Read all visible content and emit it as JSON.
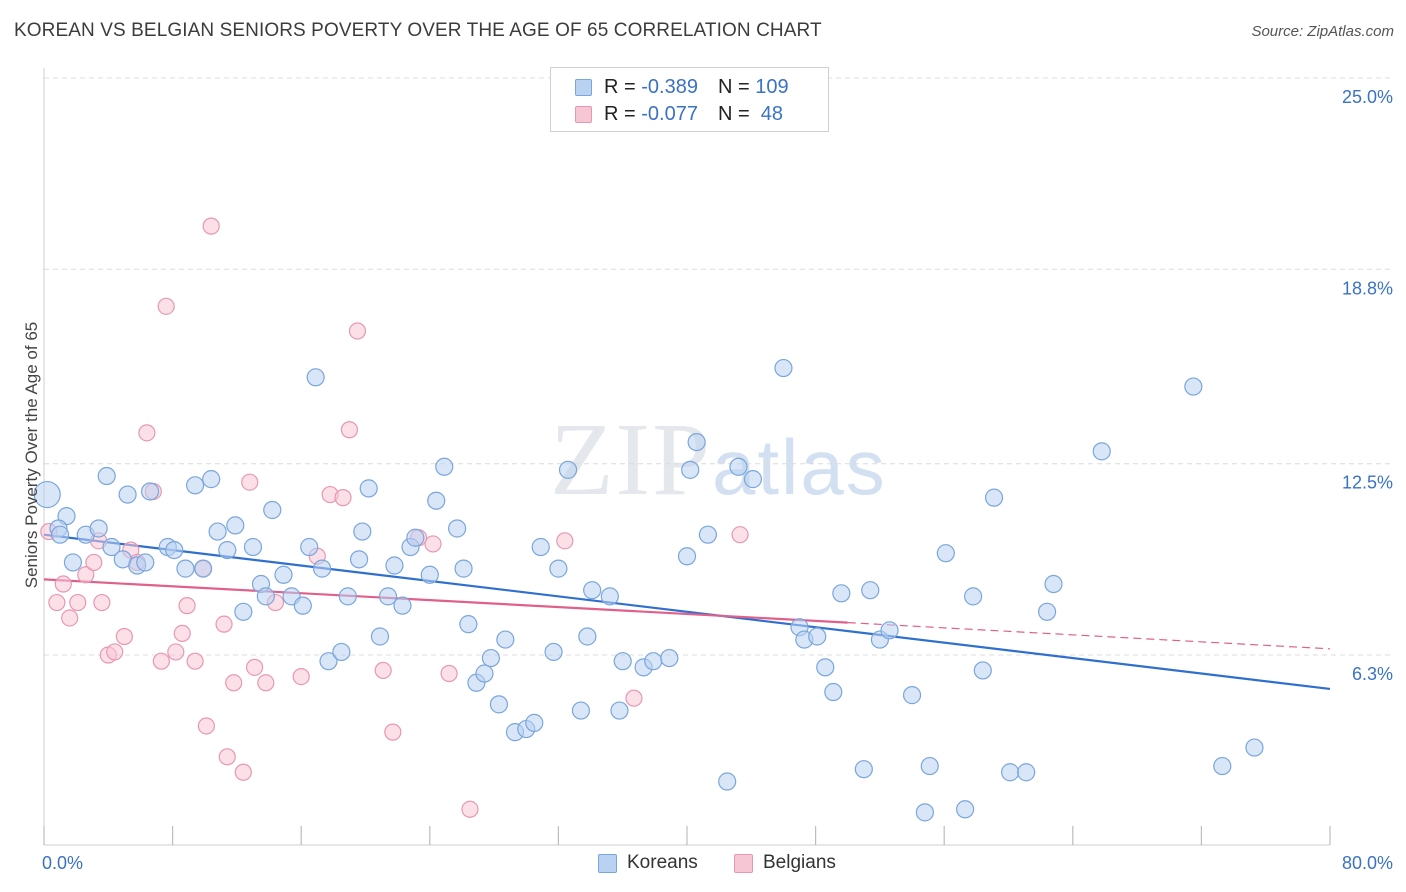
{
  "title": "KOREAN VS BELGIAN SENIORS POVERTY OVER THE AGE OF 65 CORRELATION CHART",
  "source": "Source: ZipAtlas.com",
  "watermark": {
    "zip": "ZIP",
    "atlas": "atlas"
  },
  "legend": {
    "rows": [
      {
        "r_label": "R = ",
        "r_value": "-0.389",
        "n_label": "N = ",
        "n_value": "109"
      },
      {
        "r_label": "R = ",
        "r_value": "-0.077",
        "n_label": "N = ",
        "n_value": " 48"
      }
    ]
  },
  "bottom_legend": {
    "koreans": "Koreans",
    "belgians": "Belgians"
  },
  "colors": {
    "korean_fill": "#b9d2f2",
    "korean_stroke": "#7aa6dc",
    "korean_line": "#2f6fd0",
    "belgian_fill": "#f7c6d5",
    "belgian_stroke": "#e897b2",
    "belgian_line": "#e0608c",
    "grid": "#dcdcdc",
    "tick_label": "#3a73c4"
  },
  "chart_data": {
    "type": "scatter",
    "title": "KOREAN VS BELGIAN SENIORS POVERTY OVER THE AGE OF 65 CORRELATION CHART",
    "xlabel": "",
    "ylabel": "Seniors Poverty Over the Age of 65",
    "xlim": [
      0,
      80
    ],
    "ylim": [
      0,
      26.5
    ],
    "x_tick_labels": [
      "0.0%",
      "80.0%"
    ],
    "y_ticks": [
      6.3,
      12.5,
      18.8,
      25.0
    ],
    "y_tick_labels": [
      "6.3%",
      "12.5%",
      "18.8%",
      "25.0%"
    ],
    "grid": "horizontal dashed",
    "legend_position": "top-center",
    "series": [
      {
        "name": "Koreans",
        "points": [
          [
            0.2,
            11.5
          ],
          [
            1.4,
            10.8
          ],
          [
            0.9,
            10.4
          ],
          [
            2.6,
            10.2
          ],
          [
            3.4,
            10.4
          ],
          [
            1.8,
            9.3
          ],
          [
            4.2,
            9.8
          ],
          [
            3.9,
            12.1
          ],
          [
            5.2,
            11.5
          ],
          [
            4.9,
            9.4
          ],
          [
            5.8,
            9.2
          ],
          [
            6.3,
            9.3
          ],
          [
            6.6,
            11.6
          ],
          [
            7.7,
            9.8
          ],
          [
            8.1,
            9.7
          ],
          [
            8.8,
            9.1
          ],
          [
            9.9,
            9.1
          ],
          [
            9.4,
            11.8
          ],
          [
            10.4,
            12.0
          ],
          [
            10.8,
            10.3
          ],
          [
            11.4,
            9.7
          ],
          [
            11.9,
            10.5
          ],
          [
            12.4,
            7.7
          ],
          [
            13.0,
            9.8
          ],
          [
            13.5,
            8.6
          ],
          [
            13.8,
            8.2
          ],
          [
            14.2,
            11.0
          ],
          [
            14.9,
            8.9
          ],
          [
            15.4,
            8.2
          ],
          [
            16.1,
            7.9
          ],
          [
            16.5,
            9.8
          ],
          [
            17.3,
            9.1
          ],
          [
            16.9,
            15.3
          ],
          [
            17.7,
            6.1
          ],
          [
            18.5,
            6.4
          ],
          [
            18.9,
            8.2
          ],
          [
            19.6,
            9.4
          ],
          [
            19.8,
            10.3
          ],
          [
            20.2,
            11.7
          ],
          [
            20.9,
            6.9
          ],
          [
            21.4,
            8.2
          ],
          [
            21.8,
            9.2
          ],
          [
            22.3,
            7.9
          ],
          [
            22.8,
            9.8
          ],
          [
            23.1,
            10.1
          ],
          [
            24.0,
            8.9
          ],
          [
            24.4,
            11.3
          ],
          [
            24.9,
            12.4
          ],
          [
            25.7,
            10.4
          ],
          [
            26.1,
            9.1
          ],
          [
            26.4,
            7.3
          ],
          [
            26.9,
            5.4
          ],
          [
            27.4,
            5.7
          ],
          [
            27.8,
            6.2
          ],
          [
            28.3,
            4.7
          ],
          [
            28.7,
            6.8
          ],
          [
            29.3,
            3.8
          ],
          [
            30.0,
            3.9
          ],
          [
            30.5,
            4.1
          ],
          [
            30.9,
            9.8
          ],
          [
            31.7,
            6.4
          ],
          [
            32.0,
            9.1
          ],
          [
            32.6,
            12.3
          ],
          [
            33.4,
            4.5
          ],
          [
            33.8,
            6.9
          ],
          [
            34.1,
            8.4
          ],
          [
            35.2,
            8.2
          ],
          [
            35.8,
            4.5
          ],
          [
            36.0,
            6.1
          ],
          [
            37.3,
            5.9
          ],
          [
            37.9,
            6.1
          ],
          [
            38.9,
            6.2
          ],
          [
            40.0,
            9.5
          ],
          [
            40.2,
            12.3
          ],
          [
            40.6,
            13.2
          ],
          [
            41.3,
            10.2
          ],
          [
            42.5,
            2.2
          ],
          [
            43.2,
            12.4
          ],
          [
            44.1,
            12.0
          ],
          [
            46.0,
            15.6
          ],
          [
            47.0,
            7.2
          ],
          [
            47.3,
            6.8
          ],
          [
            48.1,
            6.9
          ],
          [
            48.6,
            5.9
          ],
          [
            49.1,
            5.1
          ],
          [
            49.6,
            8.3
          ],
          [
            51.0,
            2.6
          ],
          [
            51.4,
            8.4
          ],
          [
            52.0,
            6.8
          ],
          [
            52.6,
            7.1
          ],
          [
            54.0,
            5.0
          ],
          [
            55.1,
            2.7
          ],
          [
            54.8,
            1.2
          ],
          [
            56.1,
            9.6
          ],
          [
            57.3,
            1.3
          ],
          [
            57.8,
            8.2
          ],
          [
            58.4,
            5.8
          ],
          [
            59.1,
            11.4
          ],
          [
            60.1,
            2.5
          ],
          [
            61.1,
            2.5
          ],
          [
            62.4,
            7.7
          ],
          [
            62.8,
            8.6
          ],
          [
            65.8,
            12.9
          ],
          [
            71.5,
            15.0
          ],
          [
            73.3,
            2.7
          ],
          [
            75.3,
            3.3
          ],
          [
            1.0,
            10.2
          ]
        ]
      },
      {
        "name": "Belgians",
        "points": [
          [
            0.3,
            10.3
          ],
          [
            0.8,
            8.0
          ],
          [
            1.2,
            8.6
          ],
          [
            1.6,
            7.5
          ],
          [
            2.1,
            8.0
          ],
          [
            2.6,
            8.9
          ],
          [
            3.1,
            9.3
          ],
          [
            3.4,
            10.0
          ],
          [
            3.6,
            8.0
          ],
          [
            4.0,
            6.3
          ],
          [
            4.4,
            6.4
          ],
          [
            5.0,
            6.9
          ],
          [
            5.4,
            9.7
          ],
          [
            5.8,
            9.3
          ],
          [
            6.4,
            13.5
          ],
          [
            6.8,
            11.6
          ],
          [
            7.3,
            6.1
          ],
          [
            7.6,
            17.6
          ],
          [
            8.2,
            6.4
          ],
          [
            8.6,
            7.0
          ],
          [
            8.9,
            7.9
          ],
          [
            9.4,
            6.1
          ],
          [
            9.9,
            9.1
          ],
          [
            10.1,
            4.0
          ],
          [
            10.4,
            20.2
          ],
          [
            11.2,
            7.3
          ],
          [
            11.4,
            3.0
          ],
          [
            11.8,
            5.4
          ],
          [
            12.4,
            2.5
          ],
          [
            12.8,
            11.9
          ],
          [
            13.1,
            5.9
          ],
          [
            13.8,
            5.4
          ],
          [
            14.4,
            8.0
          ],
          [
            16.0,
            5.6
          ],
          [
            17.0,
            9.5
          ],
          [
            17.8,
            11.5
          ],
          [
            18.6,
            11.4
          ],
          [
            19.0,
            13.6
          ],
          [
            19.5,
            16.8
          ],
          [
            21.1,
            5.8
          ],
          [
            21.7,
            3.8
          ],
          [
            23.3,
            10.1
          ],
          [
            24.2,
            9.9
          ],
          [
            25.2,
            5.7
          ],
          [
            26.5,
            1.3
          ],
          [
            32.4,
            10.0
          ],
          [
            36.7,
            4.9
          ],
          [
            43.3,
            10.2
          ]
        ]
      }
    ],
    "trend_lines": [
      {
        "name": "Koreans",
        "x": [
          0,
          80
        ],
        "y": [
          10.2,
          5.2
        ]
      },
      {
        "name": "Belgians",
        "x": [
          0,
          50
        ],
        "y": [
          8.75,
          7.35
        ],
        "dashed_extension_to": [
          80,
          6.5
        ]
      }
    ]
  }
}
